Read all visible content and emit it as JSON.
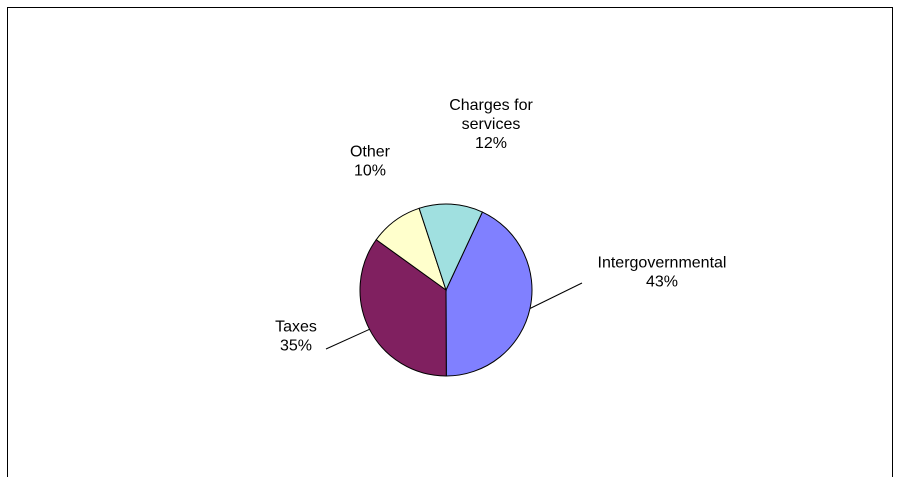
{
  "chart_data": {
    "type": "pie",
    "categories": [
      "Intergovernmental",
      "Taxes",
      "Other",
      "Charges for services"
    ],
    "label_lines": [
      [
        "Intergovernmental"
      ],
      [
        "Taxes"
      ],
      [
        "Other"
      ],
      [
        "Charges for",
        "services"
      ]
    ],
    "values": [
      43,
      35,
      10,
      12
    ],
    "value_labels": [
      "43%",
      "35%",
      "10%",
      "12%"
    ],
    "colors": [
      "#8080ff",
      "#802060",
      "#ffffcc",
      "#a0e0e0"
    ],
    "outline_color": "#000000",
    "title": "",
    "legend": "none"
  }
}
